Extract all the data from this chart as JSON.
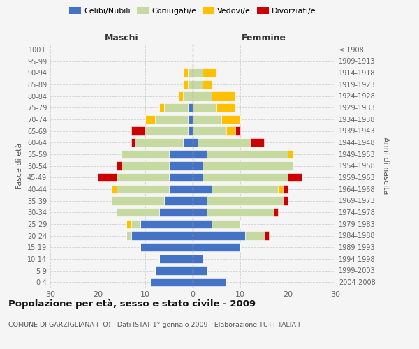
{
  "age_groups": [
    "0-4",
    "5-9",
    "10-14",
    "15-19",
    "20-24",
    "25-29",
    "30-34",
    "35-39",
    "40-44",
    "45-49",
    "50-54",
    "55-59",
    "60-64",
    "65-69",
    "70-74",
    "75-79",
    "80-84",
    "85-89",
    "90-94",
    "95-99",
    "100+"
  ],
  "birth_years": [
    "2004-2008",
    "1999-2003",
    "1994-1998",
    "1989-1993",
    "1984-1988",
    "1979-1983",
    "1974-1978",
    "1969-1973",
    "1964-1968",
    "1959-1963",
    "1954-1958",
    "1949-1953",
    "1944-1948",
    "1939-1943",
    "1934-1938",
    "1929-1933",
    "1924-1928",
    "1919-1923",
    "1914-1918",
    "1909-1913",
    "≤ 1908"
  ],
  "colors": {
    "celibi": "#4472c4",
    "coniugati": "#c5d9a0",
    "vedovi": "#ffc000",
    "divorziati": "#cc0000"
  },
  "maschi": {
    "celibi": [
      9,
      8,
      7,
      11,
      13,
      11,
      7,
      6,
      5,
      5,
      5,
      5,
      2,
      1,
      1,
      1,
      0,
      0,
      0,
      0,
      0
    ],
    "coniugati": [
      0,
      0,
      0,
      0,
      1,
      2,
      9,
      11,
      11,
      11,
      10,
      10,
      10,
      9,
      7,
      5,
      2,
      1,
      1,
      0,
      0
    ],
    "vedovi": [
      0,
      0,
      0,
      0,
      0,
      1,
      0,
      0,
      1,
      0,
      0,
      0,
      0,
      0,
      2,
      1,
      1,
      1,
      1,
      0,
      0
    ],
    "divorziati": [
      0,
      0,
      0,
      0,
      0,
      0,
      0,
      0,
      0,
      4,
      1,
      0,
      1,
      3,
      0,
      0,
      0,
      0,
      0,
      0,
      0
    ]
  },
  "femmine": {
    "celibi": [
      7,
      3,
      2,
      10,
      11,
      4,
      3,
      3,
      4,
      2,
      2,
      3,
      1,
      0,
      0,
      0,
      0,
      0,
      0,
      0,
      0
    ],
    "coniugati": [
      0,
      0,
      0,
      0,
      4,
      6,
      14,
      16,
      14,
      18,
      19,
      17,
      11,
      7,
      6,
      5,
      4,
      2,
      2,
      0,
      0
    ],
    "vedovi": [
      0,
      0,
      0,
      0,
      0,
      0,
      0,
      0,
      1,
      0,
      0,
      1,
      0,
      2,
      4,
      4,
      5,
      2,
      3,
      0,
      0
    ],
    "divorziati": [
      0,
      0,
      0,
      0,
      1,
      0,
      1,
      1,
      1,
      3,
      0,
      0,
      3,
      1,
      0,
      0,
      0,
      0,
      0,
      0,
      0
    ]
  },
  "title": "Popolazione per età, sesso e stato civile - 2009",
  "subtitle": "COMUNE DI GARZIGLIANA (TO) - Dati ISTAT 1° gennaio 2009 - Elaborazione TUTTITALIA.IT",
  "xlabel_left": "Maschi",
  "xlabel_right": "Femmine",
  "ylabel_left": "Fasce di età",
  "ylabel_right": "Anni di nascita",
  "xlim": 30,
  "legend_labels": [
    "Celibi/Nubili",
    "Coniugati/e",
    "Vedovi/e",
    "Divorziati/e"
  ],
  "background_color": "#f5f5f5",
  "grid_color": "#cccccc"
}
